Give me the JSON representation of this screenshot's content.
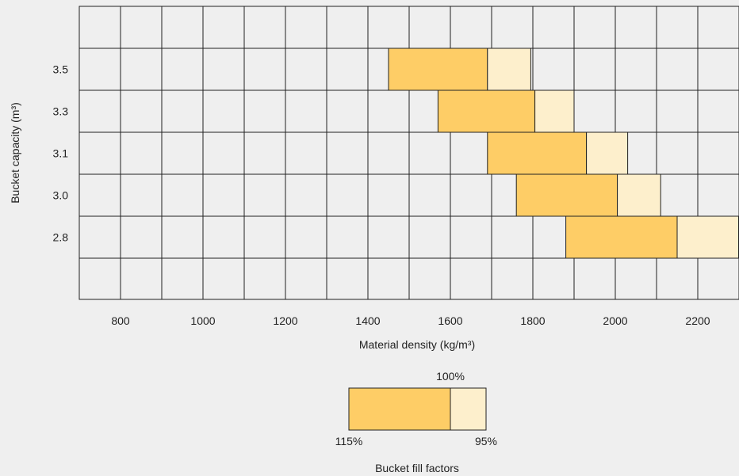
{
  "chart_data": {
    "type": "bar",
    "subtype": "floating-range",
    "xlabel": "Material density (kg/m³)",
    "ylabel": "Bucket capacity (m³)",
    "x_ticks": [
      "800",
      "1000",
      "1200",
      "1400",
      "1600",
      "1800",
      "2000",
      "2200"
    ],
    "xlim": [
      700,
      2300
    ],
    "y_categories": [
      "3.5",
      "3.3",
      "3.1",
      "3.0",
      "2.8"
    ],
    "grid": true,
    "colors": {
      "range_115_to_100": "#fecd66",
      "range_100_to_95": "#fdefcc",
      "border": "#222222",
      "background": "#efefef"
    },
    "series": [
      {
        "capacity": "3.5",
        "fill_115": 1450,
        "fill_100": 1690,
        "fill_95": 1795
      },
      {
        "capacity": "3.3",
        "fill_115": 1570,
        "fill_100": 1805,
        "fill_95": 1900
      },
      {
        "capacity": "3.1",
        "fill_115": 1690,
        "fill_100": 1930,
        "fill_95": 2030
      },
      {
        "capacity": "3.0",
        "fill_115": 1760,
        "fill_100": 2005,
        "fill_95": 2110
      },
      {
        "capacity": "2.8",
        "fill_115": 1880,
        "fill_100": 2150,
        "fill_95": 2300
      }
    ],
    "legend": {
      "title": "Bucket fill factors",
      "label_100": "100%",
      "label_115": "115%",
      "label_95": "95%",
      "placement": "bottom-center"
    }
  }
}
